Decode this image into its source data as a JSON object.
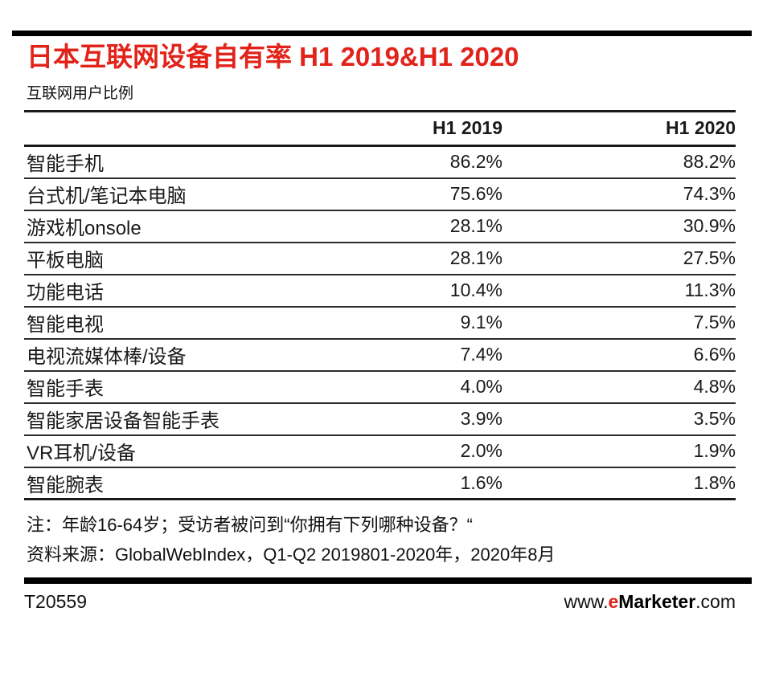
{
  "colors": {
    "accent_red": "#e2231a",
    "bar_black": "#000000",
    "text": "#1a1a1a"
  },
  "header": {
    "title": "日本互联网设备自有率 H1 2019&H1 2020",
    "subtitle": "互联网用户比例"
  },
  "table": {
    "columns": [
      "H1 2019",
      "H1 2020"
    ],
    "rows": [
      {
        "label": "智能手机",
        "v2019": "86.2%",
        "v2020": "88.2%"
      },
      {
        "label": "台式机/笔记本电脑",
        "v2019": "75.6%",
        "v2020": "74.3%"
      },
      {
        "label": "游戏机onsole",
        "v2019": "28.1%",
        "v2020": "30.9%"
      },
      {
        "label": "平板电脑",
        "v2019": "28.1%",
        "v2020": "27.5%"
      },
      {
        "label": "功能电话",
        "v2019": "10.4%",
        "v2020": "11.3%"
      },
      {
        "label": "智能电视",
        "v2019": "9.1%",
        "v2020": "7.5%"
      },
      {
        "label": "电视流媒体棒/设备",
        "v2019": "7.4%",
        "v2020": "6.6%"
      },
      {
        "label": "智能手表",
        "v2019": "4.0%",
        "v2020": "4.8%"
      },
      {
        "label": "智能家居设备智能手表",
        "v2019": "3.9%",
        "v2020": "3.5%"
      },
      {
        "label": "VR耳机/设备",
        "v2019": "2.0%",
        "v2020": "1.9%"
      },
      {
        "label": "智能腕表",
        "v2019": "1.6%",
        "v2020": "1.8%"
      }
    ]
  },
  "chart_data": {
    "type": "table",
    "title": "日本互联网设备自有率 H1 2019&H1 2020",
    "subtitle": "互联网用户比例",
    "unit": "%",
    "categories": [
      "智能手机",
      "台式机/笔记本电脑",
      "游戏机onsole",
      "平板电脑",
      "功能电话",
      "智能电视",
      "电视流媒体棒/设备",
      "智能手表",
      "智能家居设备智能手表",
      "VR耳机/设备",
      "智能腕表"
    ],
    "series": [
      {
        "name": "H1 2019",
        "values": [
          86.2,
          75.6,
          28.1,
          28.1,
          10.4,
          9.1,
          7.4,
          4.0,
          3.9,
          2.0,
          1.6
        ]
      },
      {
        "name": "H1 2020",
        "values": [
          88.2,
          74.3,
          30.9,
          27.5,
          11.3,
          7.5,
          6.6,
          4.8,
          3.5,
          1.9,
          1.8
        ]
      }
    ]
  },
  "notes": {
    "note": "注：年龄16-64岁；受访者被问到“你拥有下列哪种设备？“",
    "source": "资料来源：GlobalWebIndex，Q1-Q2 2019801-2020年，2020年8月"
  },
  "footer": {
    "doc_id": "T20559",
    "website": {
      "prefix": "www.",
      "e": "e",
      "brand": "Marketer",
      "suffix": ".com"
    }
  }
}
